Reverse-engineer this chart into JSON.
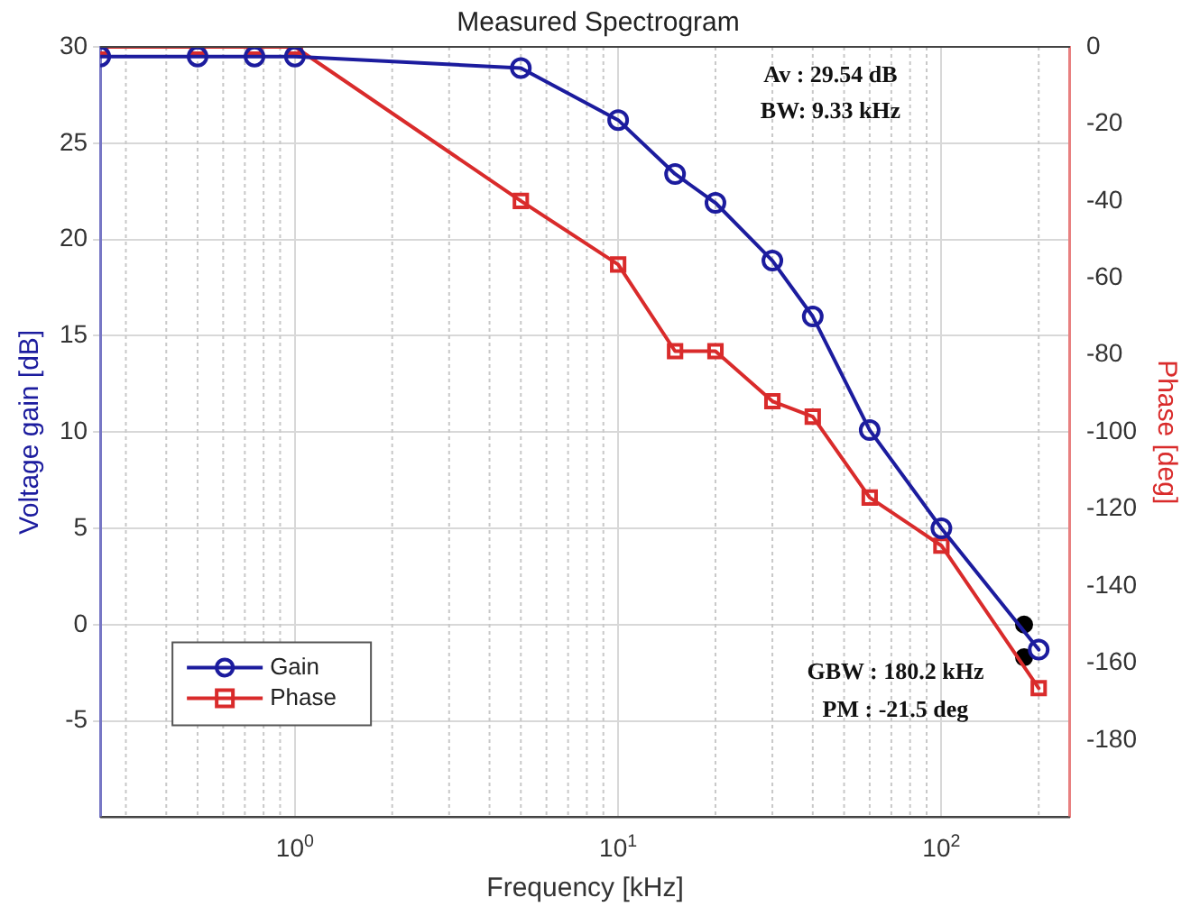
{
  "chart_data": {
    "type": "line",
    "title": "Measured Spectrogram",
    "xlabel": "Frequency [kHz]",
    "ylabel": "Voltage gain [dB]",
    "y2label": "Phase [deg]",
    "log": "x",
    "grid": true,
    "legend": "bottom left",
    "xlim": [
      0.25,
      250
    ],
    "xticks": [
      {
        "value": 1,
        "label": "10$^{0}$"
      },
      {
        "value": 10,
        "label": "10$^{1}$"
      },
      {
        "value": 100,
        "label": "10$^{2}$"
      }
    ],
    "ylim": [
      -10,
      30
    ],
    "yticks": [
      -5,
      0,
      5,
      10,
      15,
      20,
      25,
      30
    ],
    "y2lim": [
      -200,
      0
    ],
    "y2ticks": [
      -180,
      -160,
      -140,
      -120,
      -100,
      -80,
      -60,
      -40,
      -20,
      0
    ],
    "series": [
      {
        "name": "Gain",
        "color": "#1c1c9e",
        "marker": "circle",
        "x": [
          0.25,
          0.5,
          0.75,
          1,
          5,
          10,
          15,
          20,
          30,
          40,
          60,
          100,
          200
        ],
        "values": [
          29.5,
          29.5,
          29.5,
          29.5,
          28.9,
          26.2,
          23.4,
          21.9,
          18.9,
          16.0,
          10.1,
          5.0,
          -1.3
        ]
      },
      {
        "name": "Phase",
        "color": "#d92b2b",
        "marker": "square",
        "axis": "y2",
        "x": [
          0.25,
          0.5,
          0.75,
          1,
          5,
          10,
          15,
          20,
          30,
          40,
          60,
          100,
          200
        ],
        "values": [
          0,
          0,
          0,
          0,
          -40,
          -56.5,
          -79,
          -79,
          -92,
          -96,
          -117,
          -129.5,
          -166.5
        ]
      },
      {
        "type": "scatter",
        "color": "#000000",
        "marker": "circle",
        "x": [
          180.2
        ],
        "values": [
          0
        ]
      },
      {
        "type": "scatter",
        "color": "#000000",
        "marker": "circle",
        "axis": "y2",
        "x": [
          180.2
        ],
        "values": [
          -158.5
        ]
      }
    ],
    "annotations": [
      "Av : 29.54 dB",
      "BW: 9.33 kHz",
      "GBW : 180.2 kHz",
      "PM : -21.5 deg"
    ]
  }
}
